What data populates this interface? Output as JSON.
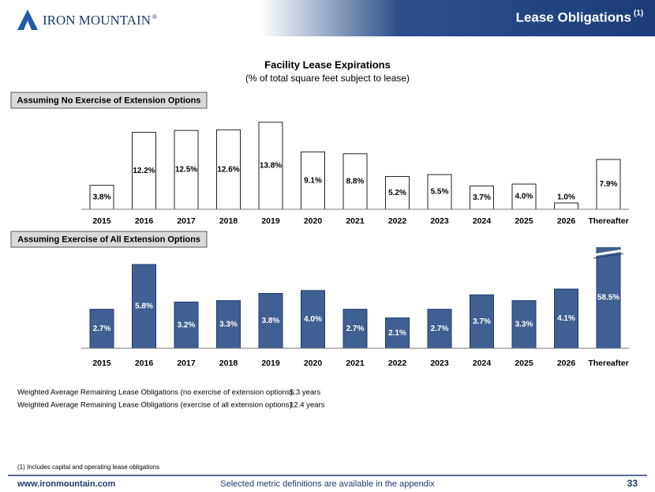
{
  "header": {
    "logo": "IRON MOUNTAIN",
    "logo_mark": "®",
    "title": "Lease Obligations",
    "title_sup": "(1)"
  },
  "heading": {
    "title": "Facility Lease Expirations",
    "subtitle": "(% of total square feet subject to lease)"
  },
  "chart_data": [
    {
      "type": "bar",
      "label": "Assuming No Exercise of Extension Options",
      "categories": [
        "2015",
        "2016",
        "2017",
        "2018",
        "2019",
        "2020",
        "2021",
        "2022",
        "2023",
        "2024",
        "2025",
        "2026",
        "Thereafter"
      ],
      "values": [
        3.8,
        12.2,
        12.5,
        12.6,
        13.8,
        9.1,
        8.8,
        5.2,
        5.5,
        3.7,
        4.0,
        1.0,
        7.9
      ],
      "value_labels": [
        "3.8%",
        "12.2%",
        "12.5%",
        "12.6%",
        "13.8%",
        "9.1%",
        "8.8%",
        "5.2%",
        "5.5%",
        "3.7%",
        "4.0%",
        "1.0%",
        "7.9%"
      ],
      "color": "#ffffff",
      "ylim": [
        0,
        14.4
      ]
    },
    {
      "type": "bar",
      "label": "Assuming Exercise of All Extension Options",
      "categories": [
        "2015",
        "2016",
        "2017",
        "2018",
        "2019",
        "2020",
        "2021",
        "2022",
        "2023",
        "2024",
        "2025",
        "2026",
        "Thereafter"
      ],
      "values": [
        2.7,
        5.8,
        3.2,
        3.3,
        3.8,
        4.0,
        2.7,
        2.1,
        2.7,
        3.7,
        3.3,
        4.1,
        58.5
      ],
      "value_labels": [
        "2.7%",
        "5.8%",
        "3.2%",
        "3.3%",
        "3.8%",
        "4.0%",
        "2.7%",
        "2.1%",
        "2.7%",
        "3.7%",
        "3.3%",
        "4.1%",
        "58.5%"
      ],
      "color": "#405f92",
      "ylim": [
        0,
        7
      ]
    }
  ],
  "notes": [
    {
      "label": "Weighted Average Remaining Lease Obligations (no exercise of extension options):",
      "value": "5.3 years"
    },
    {
      "label": "Weighted Average Remaining Lease Obligations (exercise of all extension options):",
      "value": "12.4 years"
    }
  ],
  "footnote": "(1) Includes capital and operating lease obligations",
  "footer": {
    "url": "www.ironmountain.com",
    "center": "Selected metric definitions are available in the appendix",
    "page": "33"
  }
}
